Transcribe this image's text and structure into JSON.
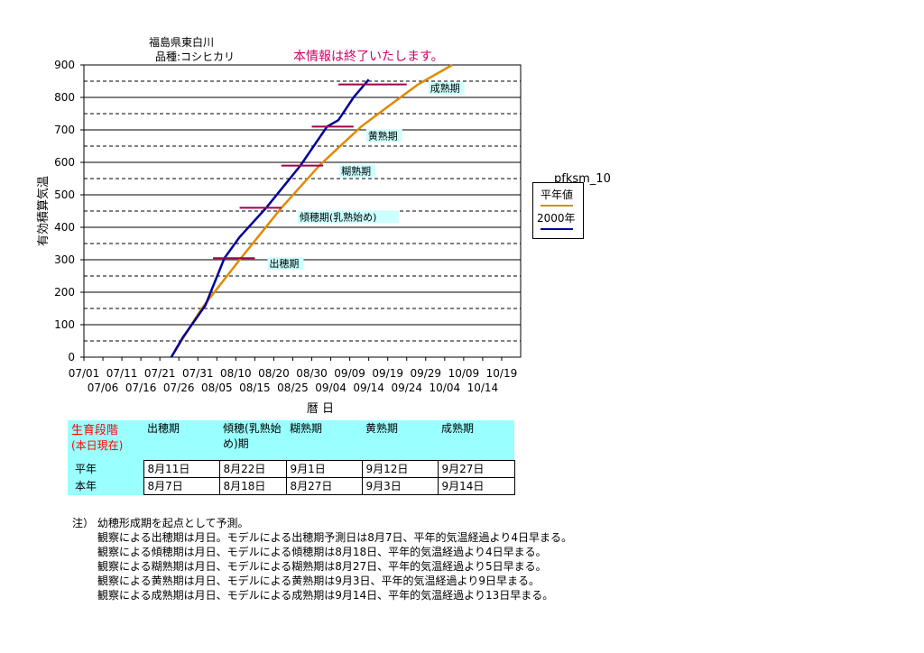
{
  "header": {
    "location": "福島県東白川",
    "variety": "品種:コシヒカリ",
    "notice": "本情報は終了いたします。"
  },
  "colors": {
    "normal": "#e08a00",
    "year2000": "#000099",
    "stage_line": "#a0004a",
    "label_bg": "#ccffff",
    "table_bg": "#99ffff",
    "notice": "#cc0066"
  },
  "chart_data": {
    "type": "line",
    "xlabel": "暦 日",
    "ylabel": "有効積算気温",
    "ylim": [
      0,
      900
    ],
    "yticks": [
      0,
      100,
      200,
      300,
      400,
      500,
      600,
      700,
      800,
      900
    ],
    "x_tick_labels_row1": [
      "07/01",
      "07/11",
      "07/21",
      "07/31",
      "08/10",
      "08/20",
      "08/30",
      "09/09",
      "09/19",
      "09/29",
      "10/09",
      "10/19"
    ],
    "x_tick_labels_row2": [
      "07/06",
      "07/16",
      "07/26",
      "08/05",
      "08/15",
      "08/25",
      "09/04",
      "09/14",
      "09/24",
      "10/04",
      "10/14"
    ],
    "grid": "solid at hundreds, dashed at fifties",
    "legend_placement": "right",
    "legend_partial_title": "pfksm_10",
    "series": [
      {
        "name": "平年値",
        "points": [
          [
            "07/24",
            0
          ],
          [
            "08/01",
            150
          ],
          [
            "08/11",
            300
          ],
          [
            "08/22",
            460
          ],
          [
            "09/01",
            590
          ],
          [
            "09/12",
            710
          ],
          [
            "09/20",
            780
          ],
          [
            "09/27",
            840
          ],
          [
            "10/06",
            900
          ]
        ]
      },
      {
        "name": "2000年",
        "points": [
          [
            "07/24",
            0
          ],
          [
            "07/27",
            60
          ],
          [
            "07/30",
            110
          ],
          [
            "08/02",
            160
          ],
          [
            "08/07",
            305
          ],
          [
            "08/11",
            370
          ],
          [
            "08/18",
            460
          ],
          [
            "08/27",
            590
          ],
          [
            "09/03",
            710
          ],
          [
            "09/06",
            730
          ],
          [
            "09/10",
            800
          ],
          [
            "09/14",
            855
          ]
        ]
      }
    ],
    "stages": [
      {
        "label": "出穂期",
        "value": 305,
        "from": "08/04",
        "to": "08/15"
      },
      {
        "label": "傾穂期(乳熟始め)",
        "value": 460,
        "from": "08/11",
        "to": "08/22"
      },
      {
        "label": "糊熟期",
        "value": 590,
        "from": "08/22",
        "to": "09/02"
      },
      {
        "label": "黄熟期",
        "value": 710,
        "from": "08/30",
        "to": "09/10"
      },
      {
        "label": "成熟期",
        "value": 840,
        "from": "09/06",
        "to": "09/24"
      }
    ]
  },
  "stage_table": {
    "header_label": "生育段階",
    "header_sub": "(本日現在)",
    "columns": [
      "出穂期",
      "傾穂(乳熟始め)期",
      "糊熟期",
      "黄熟期",
      "成熟期"
    ],
    "rows": [
      {
        "label": "平年",
        "values": [
          "8月11日",
          "8月22日",
          "9月1日",
          "9月12日",
          "9月27日"
        ]
      },
      {
        "label": "本年",
        "values": [
          "8月7日",
          "8月18日",
          "8月27日",
          "9月3日",
          "9月14日"
        ]
      }
    ]
  },
  "notes": {
    "title": "注） 幼穂形成期を起点として予測。",
    "lines": [
      "観察による出穂期は月日。モデルによる出穂期予測日は8月7日、平年的気温経過より4日早まる。",
      "観察による傾穂期は月日、モデルによる傾穂期は8月18日、平年的気温経過より4日早まる。",
      "観察による糊熟期は月日、モデルによる糊熟期は8月27日、平年的気温経過より5日早まる。",
      "観察による黄熟期は月日、モデルによる黄熟期は9月3日、平年的気温経過より9日早まる。",
      "観察による成熟期は月日、モデルによる成熟期は9月14日、平年的気温経過より13日早まる。"
    ]
  }
}
